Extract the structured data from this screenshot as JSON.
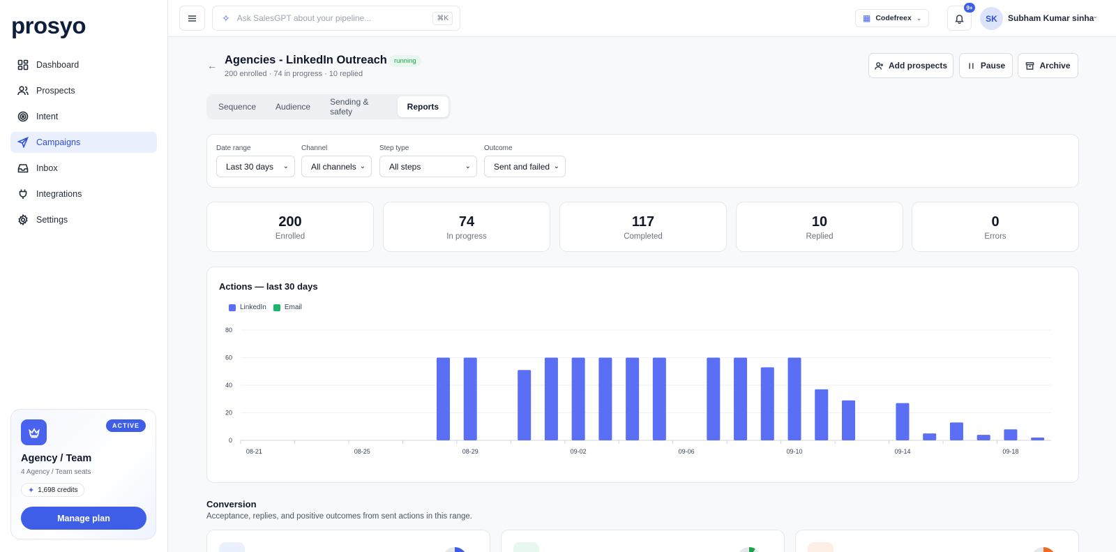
{
  "app": {
    "logo": "prosyo"
  },
  "sidebar": {
    "items": [
      {
        "label": "Dashboard",
        "icon": "dashboard-icon"
      },
      {
        "label": "Prospects",
        "icon": "users-icon"
      },
      {
        "label": "Intent",
        "icon": "target-icon"
      },
      {
        "label": "Campaigns",
        "icon": "send-icon",
        "active": true
      },
      {
        "label": "Inbox",
        "icon": "inbox-icon"
      },
      {
        "label": "Integrations",
        "icon": "plug-icon"
      },
      {
        "label": "Settings",
        "icon": "gear-icon"
      }
    ],
    "plan": {
      "badge": "ACTIVE",
      "name": "Agency / Team",
      "seats": "4 Agency / Team seats",
      "credits": "1,698 credits",
      "button": "Manage plan"
    }
  },
  "topbar": {
    "search_placeholder": "Ask SalesGPT about your pipeline...",
    "shortcut": "⌘K",
    "org": "Codefreex",
    "notifications": "9+",
    "avatar_initials": "SK",
    "user_name": "Subham Kumar sinha"
  },
  "header": {
    "title": "Agencies - LinkedIn Outreach",
    "status": "running",
    "subtitle": "200 enrolled · 74 in progress · 10 replied",
    "actions": {
      "add": "Add prospects",
      "pause": "Pause",
      "archive": "Archive"
    }
  },
  "tabs": [
    "Sequence",
    "Audience",
    "Sending & safety",
    "Reports"
  ],
  "active_tab": "Reports",
  "filters": [
    {
      "label": "Date range",
      "value": "Last 30 days"
    },
    {
      "label": "Channel",
      "value": "All channels"
    },
    {
      "label": "Step type",
      "value": "All steps"
    },
    {
      "label": "Outcome",
      "value": "Sent and failed"
    }
  ],
  "stats": [
    {
      "value": "200",
      "label": "Enrolled"
    },
    {
      "value": "74",
      "label": "In progress"
    },
    {
      "value": "117",
      "label": "Completed"
    },
    {
      "value": "10",
      "label": "Replied"
    },
    {
      "value": "0",
      "label": "Errors"
    }
  ],
  "chart_data": {
    "type": "bar",
    "title": "Actions — last 30 days",
    "legend": [
      "LinkedIn",
      "Email"
    ],
    "colors": {
      "LinkedIn": "#5a6ff3",
      "Email": "#1fb36b"
    },
    "ylim": [
      0,
      80
    ],
    "yticks": [
      0,
      20,
      40,
      60,
      80
    ],
    "categories": [
      "08-21",
      "08-22",
      "08-23",
      "08-24",
      "08-25",
      "08-26",
      "08-27",
      "08-28",
      "08-29",
      "08-30",
      "08-31",
      "09-01",
      "09-02",
      "09-03",
      "09-04",
      "09-05",
      "09-06",
      "09-07",
      "09-08",
      "09-09",
      "09-10",
      "09-11",
      "09-12",
      "09-13",
      "09-14",
      "09-15",
      "09-16",
      "09-17",
      "09-18",
      "09-19"
    ],
    "xtick_labels": [
      "08-21",
      "08-25",
      "08-29",
      "09-02",
      "09-06",
      "09-10",
      "09-14",
      "09-18"
    ],
    "series": [
      {
        "name": "LinkedIn",
        "values": [
          0,
          0,
          0,
          0,
          0,
          0,
          0,
          60,
          60,
          0,
          51,
          60,
          60,
          60,
          60,
          60,
          0,
          60,
          60,
          53,
          60,
          37,
          29,
          0,
          27,
          5,
          13,
          4,
          8,
          2
        ]
      },
      {
        "name": "Email",
        "values": [
          0,
          0,
          0,
          0,
          0,
          0,
          0,
          0,
          0,
          0,
          0,
          0,
          0,
          0,
          0,
          0,
          0,
          0,
          0,
          0,
          0,
          0,
          0,
          0,
          0,
          0,
          0,
          0,
          0,
          0
        ]
      }
    ]
  },
  "conversion": {
    "title": "Conversion",
    "subtitle": "Acceptance, replies, and positive outcomes from sent actions in this range."
  }
}
